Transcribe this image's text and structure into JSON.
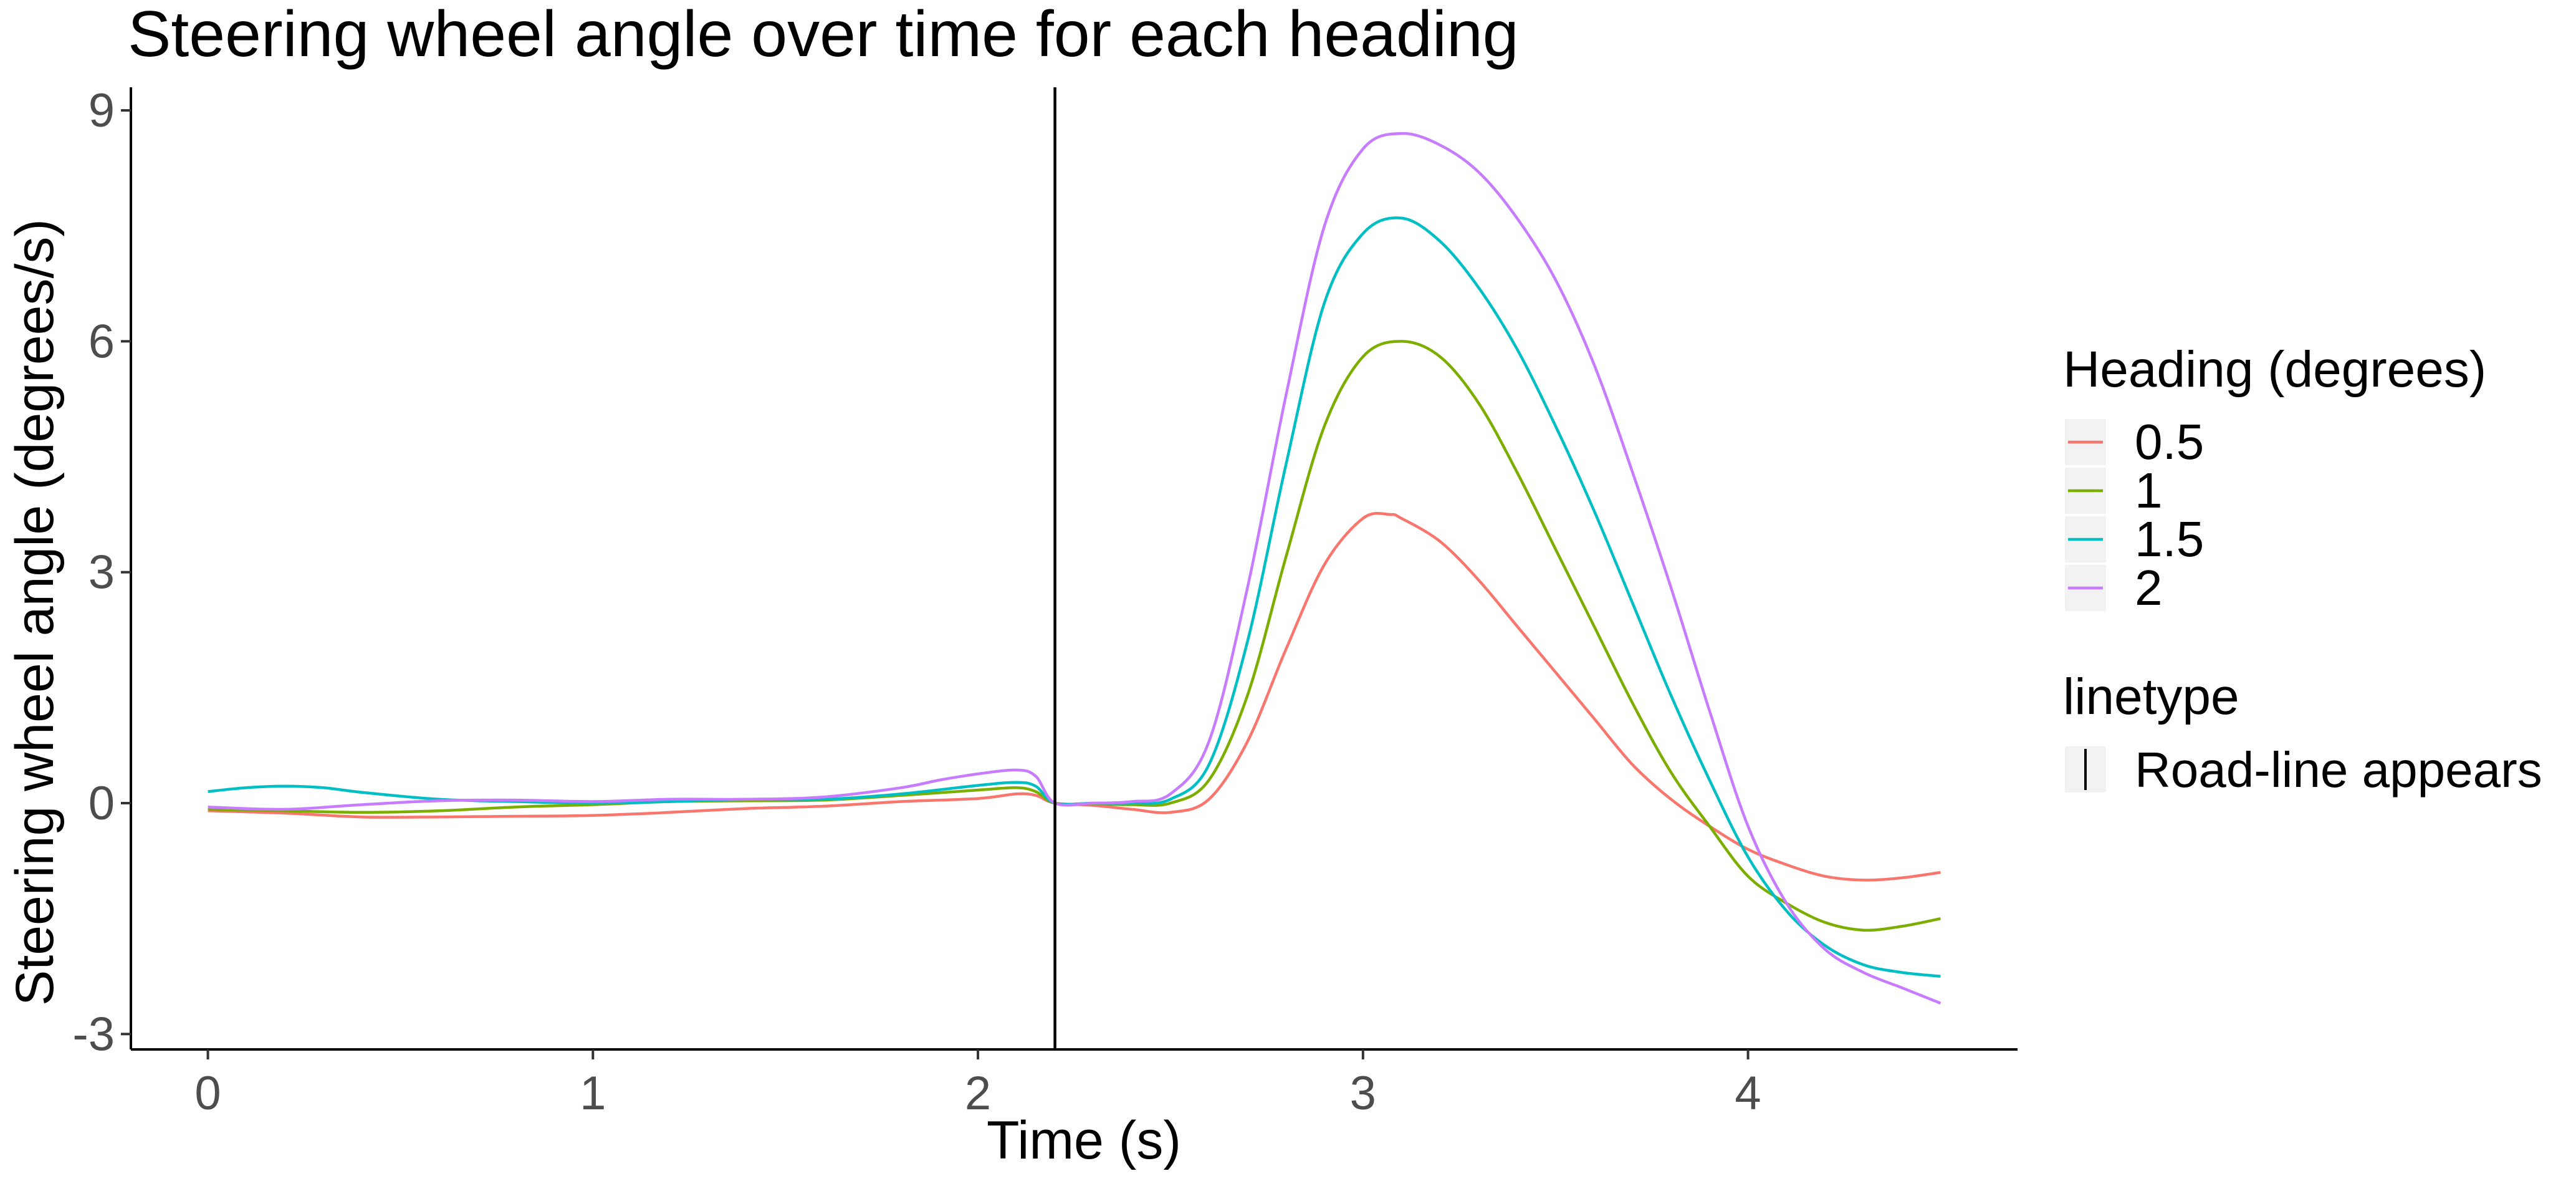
{
  "chart_data": {
    "type": "line",
    "title": "Steering wheel angle over time for each heading",
    "xlabel": "Time (s)",
    "ylabel": "Steering wheel angle (degrees/s)",
    "xlim": [
      -0.2,
      4.7
    ],
    "ylim": [
      -3.2,
      9.3
    ],
    "xticks": [
      0,
      1,
      2,
      3,
      4
    ],
    "yticks": [
      -3,
      0,
      3,
      6,
      9
    ],
    "xtick_labels": [
      "0",
      "1",
      "2",
      "3",
      "4"
    ],
    "ytick_labels": [
      "-3",
      "0",
      "3",
      "6",
      "9"
    ],
    "grid": false,
    "legend_position": "right",
    "vline": {
      "x": 2.2,
      "label": "Road-line appears",
      "color": "#000000"
    },
    "legend": {
      "color_title": "Heading (degrees)",
      "linetype_title": "linetype"
    },
    "series": [
      {
        "name": "0.5",
        "color": "#F8766D",
        "x": [
          0,
          0.2,
          0.4,
          0.6,
          0.8,
          1.0,
          1.2,
          1.4,
          1.6,
          1.8,
          2.0,
          2.1,
          2.15,
          2.2,
          2.3,
          2.4,
          2.5,
          2.6,
          2.7,
          2.8,
          2.9,
          3.0,
          3.07,
          3.1,
          3.2,
          3.3,
          3.4,
          3.5,
          3.6,
          3.7,
          3.8,
          3.9,
          4.0,
          4.1,
          4.2,
          4.3,
          4.4,
          4.5
        ],
        "y": [
          -0.1,
          -0.13,
          -0.18,
          -0.18,
          -0.17,
          -0.16,
          -0.12,
          -0.07,
          -0.04,
          0.02,
          0.06,
          0.12,
          0.1,
          0.0,
          -0.03,
          -0.08,
          -0.12,
          0.05,
          0.8,
          2.0,
          3.1,
          3.7,
          3.75,
          3.7,
          3.4,
          2.9,
          2.3,
          1.7,
          1.1,
          0.5,
          0.05,
          -0.3,
          -0.6,
          -0.8,
          -0.95,
          -1.0,
          -0.97,
          -0.9
        ]
      },
      {
        "name": "1",
        "color": "#7CAE00",
        "x": [
          0,
          0.2,
          0.4,
          0.6,
          0.8,
          1.0,
          1.2,
          1.4,
          1.6,
          1.8,
          2.0,
          2.1,
          2.15,
          2.2,
          2.3,
          2.4,
          2.5,
          2.6,
          2.7,
          2.8,
          2.9,
          3.0,
          3.1,
          3.2,
          3.3,
          3.4,
          3.5,
          3.6,
          3.7,
          3.8,
          3.9,
          4.0,
          4.1,
          4.2,
          4.3,
          4.4,
          4.5
        ],
        "y": [
          -0.08,
          -0.1,
          -0.12,
          -0.1,
          -0.05,
          -0.02,
          0.02,
          0.03,
          0.04,
          0.1,
          0.17,
          0.2,
          0.15,
          0.0,
          -0.01,
          -0.02,
          0.0,
          0.3,
          1.4,
          3.2,
          4.9,
          5.8,
          6.0,
          5.8,
          5.2,
          4.3,
          3.3,
          2.3,
          1.3,
          0.4,
          -0.3,
          -0.95,
          -1.3,
          -1.55,
          -1.65,
          -1.6,
          -1.5
        ]
      },
      {
        "name": "1.5",
        "color": "#00BFC4",
        "x": [
          0,
          0.1,
          0.2,
          0.3,
          0.4,
          0.6,
          0.8,
          1.0,
          1.2,
          1.4,
          1.6,
          1.8,
          2.0,
          2.1,
          2.15,
          2.2,
          2.3,
          2.4,
          2.5,
          2.6,
          2.7,
          2.8,
          2.9,
          3.0,
          3.1,
          3.2,
          3.3,
          3.4,
          3.5,
          3.6,
          3.7,
          3.8,
          3.9,
          4.0,
          4.1,
          4.2,
          4.3,
          4.4,
          4.5
        ],
        "y": [
          0.15,
          0.2,
          0.22,
          0.2,
          0.14,
          0.05,
          0.02,
          0.0,
          0.02,
          0.05,
          0.05,
          0.12,
          0.23,
          0.27,
          0.22,
          0.0,
          0.0,
          0.0,
          0.05,
          0.5,
          2.1,
          4.4,
          6.5,
          7.4,
          7.6,
          7.3,
          6.7,
          5.9,
          4.9,
          3.8,
          2.6,
          1.4,
          0.3,
          -0.7,
          -1.4,
          -1.85,
          -2.1,
          -2.2,
          -2.25
        ]
      },
      {
        "name": "2",
        "color": "#C77CFF",
        "x": [
          0,
          0.2,
          0.4,
          0.6,
          0.8,
          1.0,
          1.2,
          1.4,
          1.6,
          1.8,
          1.9,
          2.0,
          2.1,
          2.15,
          2.2,
          2.3,
          2.4,
          2.5,
          2.6,
          2.7,
          2.8,
          2.9,
          3.0,
          3.1,
          3.2,
          3.3,
          3.4,
          3.5,
          3.6,
          3.7,
          3.8,
          3.9,
          4.0,
          4.1,
          4.2,
          4.3,
          4.4,
          4.5
        ],
        "y": [
          -0.05,
          -0.08,
          -0.02,
          0.03,
          0.04,
          0.02,
          0.05,
          0.05,
          0.08,
          0.2,
          0.3,
          0.38,
          0.43,
          0.35,
          0.0,
          0.0,
          0.02,
          0.12,
          0.8,
          2.8,
          5.3,
          7.5,
          8.5,
          8.7,
          8.55,
          8.2,
          7.6,
          6.8,
          5.7,
          4.3,
          2.8,
          1.2,
          -0.3,
          -1.3,
          -1.9,
          -2.2,
          -2.4,
          -2.6
        ]
      }
    ]
  }
}
